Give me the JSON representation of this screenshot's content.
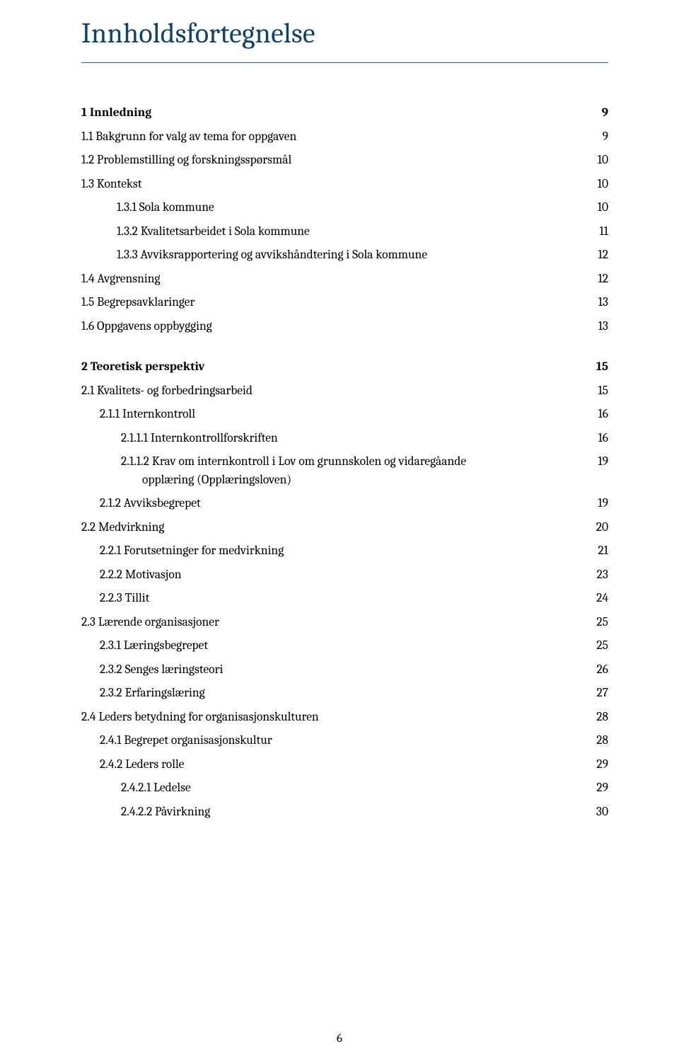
{
  "title": "Innholdsfortegnelse",
  "title_color": "#0e446c",
  "rule_color": "#2f5d82",
  "text_color": "#000000",
  "background_color": "#ffffff",
  "base_font_size_pt": 12,
  "title_font_size_pt": 28,
  "font_family": "Cambria",
  "page_number": "6",
  "entries": [
    {
      "label": "1 Innledning",
      "page": "9",
      "bold": true,
      "indent": "indent-0"
    },
    {
      "label": "1.1 Bakgrunn for valg av tema for oppgaven",
      "page": "9",
      "bold": false,
      "indent": "indent-1"
    },
    {
      "label": "1.2 Problemstilling og forskningsspørsmål",
      "page": "10",
      "bold": false,
      "indent": "indent-1"
    },
    {
      "label": "1.3 Kontekst",
      "page": "10",
      "bold": false,
      "indent": "indent-1"
    },
    {
      "label": "1.3.1    Sola kommune",
      "page": "10",
      "bold": false,
      "indent": "indent-1-tab"
    },
    {
      "label": "1.3.2    Kvalitetsarbeidet i Sola kommune",
      "page": "11",
      "bold": false,
      "indent": "indent-1-tab"
    },
    {
      "label": "1.3.3    Avviksrapportering og avvikshåndtering i Sola kommune",
      "page": "12",
      "bold": false,
      "indent": "indent-1-tab"
    },
    {
      "label": "1.4 Avgrensning",
      "page": "12",
      "bold": false,
      "indent": "indent-1"
    },
    {
      "label": "1.5 Begrepsavklaringer",
      "page": "13",
      "bold": false,
      "indent": "indent-1"
    },
    {
      "label": "1.6 Oppgavens oppbygging",
      "page": "13",
      "bold": false,
      "indent": "indent-1"
    },
    {
      "label": "2 Teoretisk perspektiv",
      "page": "15",
      "bold": true,
      "indent": "indent-0",
      "gap_before": true
    },
    {
      "label": "2.1 Kvalitets- og forbedringsarbeid",
      "page": "15",
      "bold": false,
      "indent": "indent-1"
    },
    {
      "label": "2.1.1 Internkontroll",
      "page": "16",
      "bold": false,
      "indent": "indent-2"
    },
    {
      "label": "2.1.1.1 Internkontrollforskriften",
      "page": "16",
      "bold": false,
      "indent": "indent-3"
    },
    {
      "label": "2.1.1.2 Krav om internkontroll i Lov om grunnskolen og vidaregåande",
      "page": "19",
      "bold": false,
      "indent": "indent-3",
      "wrap": "opplæring (Opplæringsloven)"
    },
    {
      "label": "2.1.2 Avviksbegrepet",
      "page": "19",
      "bold": false,
      "indent": "indent-2"
    },
    {
      "label": "2.2 Medvirkning",
      "page": "20",
      "bold": false,
      "indent": "indent-1"
    },
    {
      "label": "2.2.1 Forutsetninger for medvirkning",
      "page": "21",
      "bold": false,
      "indent": "indent-2"
    },
    {
      "label": "2.2.2 Motivasjon",
      "page": "23",
      "bold": false,
      "indent": "indent-2"
    },
    {
      "label": "2.2.3 Tillit",
      "page": "24",
      "bold": false,
      "indent": "indent-2"
    },
    {
      "label": "2.3 Lærende organisasjoner",
      "page": "25",
      "bold": false,
      "indent": "indent-1"
    },
    {
      "label": "2.3.1 Læringsbegrepet",
      "page": "25",
      "bold": false,
      "indent": "indent-2"
    },
    {
      "label": "2.3.2 Senges læringsteori",
      "page": "26",
      "bold": false,
      "indent": "indent-2"
    },
    {
      "label": "2.3.2 Erfaringslæring",
      "page": "27",
      "bold": false,
      "indent": "indent-2"
    },
    {
      "label": "2.4 Leders betydning for organisasjonskulturen",
      "page": "28",
      "bold": false,
      "indent": "indent-1"
    },
    {
      "label": "2.4.1 Begrepet organisasjonskultur",
      "page": "28",
      "bold": false,
      "indent": "indent-2"
    },
    {
      "label": "2.4.2 Leders rolle",
      "page": "29",
      "bold": false,
      "indent": "indent-2"
    },
    {
      "label": "2.4.2.1 Ledelse",
      "page": "29",
      "bold": false,
      "indent": "indent-3"
    },
    {
      "label": "2.4.2.2 Påvirkning",
      "page": "30",
      "bold": false,
      "indent": "indent-3"
    }
  ]
}
